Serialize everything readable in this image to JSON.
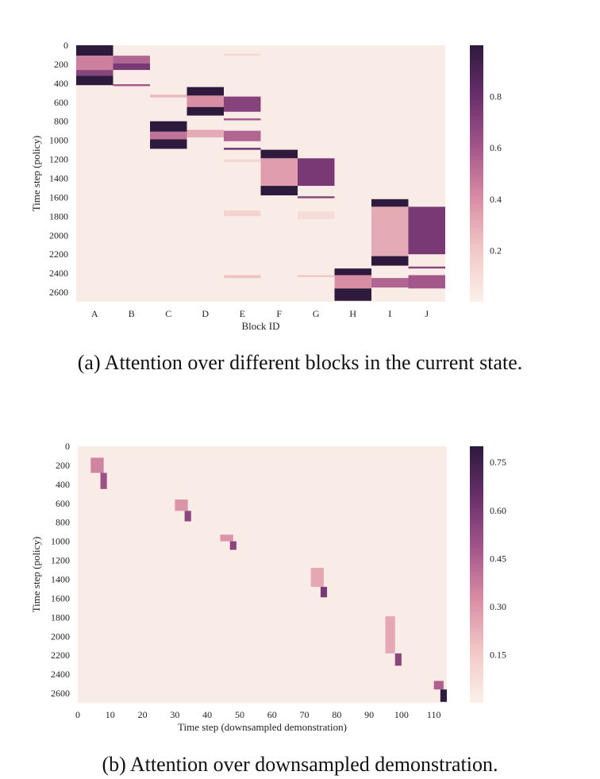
{
  "colors": {
    "low": "#fbf0ea",
    "low_mid": "#f1c8c6",
    "mid": "#d98ea4",
    "mid_high": "#a4578a",
    "high": "#6a2f6e",
    "max": "#2e1a3c",
    "background": "#f9ece7"
  },
  "chart_data": [
    {
      "type": "heatmap",
      "caption": "(a) Attention over different blocks in the current state.",
      "xlabel": "Block ID",
      "ylabel": "Time step (policy)",
      "categories": [
        "A",
        "B",
        "C",
        "D",
        "E",
        "F",
        "G",
        "H",
        "I",
        "J"
      ],
      "y_ticks": [
        0,
        200,
        400,
        600,
        800,
        1000,
        1200,
        1400,
        1600,
        1800,
        2000,
        2200,
        2400,
        2600
      ],
      "y_range": [
        0,
        2700
      ],
      "colorbar_ticks": [
        0.2,
        0.4,
        0.6,
        0.8
      ],
      "colorbar_range": [
        0.0,
        1.0
      ],
      "cells": [
        {
          "col": 0,
          "y0": 0,
          "y1": 110,
          "v": 1.0
        },
        {
          "col": 0,
          "y0": 110,
          "y1": 260,
          "v": 0.45
        },
        {
          "col": 0,
          "y0": 260,
          "y1": 320,
          "v": 0.7
        },
        {
          "col": 0,
          "y0": 320,
          "y1": 420,
          "v": 1.0
        },
        {
          "col": 1,
          "y0": 110,
          "y1": 190,
          "v": 0.55
        },
        {
          "col": 1,
          "y0": 190,
          "y1": 260,
          "v": 0.75
        },
        {
          "col": 1,
          "y0": 410,
          "y1": 430,
          "v": 0.6
        },
        {
          "col": 2,
          "y0": 520,
          "y1": 550,
          "v": 0.25
        },
        {
          "col": 2,
          "y0": 800,
          "y1": 910,
          "v": 1.0
        },
        {
          "col": 2,
          "y0": 910,
          "y1": 990,
          "v": 0.5
        },
        {
          "col": 2,
          "y0": 990,
          "y1": 1090,
          "v": 1.0
        },
        {
          "col": 3,
          "y0": 440,
          "y1": 530,
          "v": 1.0
        },
        {
          "col": 3,
          "y0": 530,
          "y1": 650,
          "v": 0.4
        },
        {
          "col": 3,
          "y0": 650,
          "y1": 740,
          "v": 1.0
        },
        {
          "col": 3,
          "y0": 890,
          "y1": 970,
          "v": 0.3
        },
        {
          "col": 4,
          "y0": 90,
          "y1": 110,
          "v": 0.12
        },
        {
          "col": 4,
          "y0": 540,
          "y1": 700,
          "v": 0.7
        },
        {
          "col": 4,
          "y0": 770,
          "y1": 790,
          "v": 0.6
        },
        {
          "col": 4,
          "y0": 900,
          "y1": 1010,
          "v": 0.55
        },
        {
          "col": 4,
          "y0": 1080,
          "y1": 1100,
          "v": 0.8
        },
        {
          "col": 4,
          "y0": 1200,
          "y1": 1230,
          "v": 0.12
        },
        {
          "col": 4,
          "y0": 1740,
          "y1": 1800,
          "v": 0.15
        },
        {
          "col": 4,
          "y0": 2420,
          "y1": 2450,
          "v": 0.22
        },
        {
          "col": 5,
          "y0": 1100,
          "y1": 1190,
          "v": 1.0
        },
        {
          "col": 5,
          "y0": 1190,
          "y1": 1480,
          "v": 0.35
        },
        {
          "col": 5,
          "y0": 1480,
          "y1": 1580,
          "v": 1.0
        },
        {
          "col": 6,
          "y0": 1190,
          "y1": 1480,
          "v": 0.75
        },
        {
          "col": 6,
          "y0": 1590,
          "y1": 1610,
          "v": 0.7
        },
        {
          "col": 6,
          "y0": 1750,
          "y1": 1830,
          "v": 0.1
        },
        {
          "col": 6,
          "y0": 2420,
          "y1": 2440,
          "v": 0.2
        },
        {
          "col": 7,
          "y0": 2350,
          "y1": 2420,
          "v": 1.0
        },
        {
          "col": 7,
          "y0": 2420,
          "y1": 2560,
          "v": 0.4
        },
        {
          "col": 7,
          "y0": 2560,
          "y1": 2690,
          "v": 1.0
        },
        {
          "col": 8,
          "y0": 1620,
          "y1": 1700,
          "v": 1.0
        },
        {
          "col": 8,
          "y0": 1700,
          "y1": 2220,
          "v": 0.3
        },
        {
          "col": 8,
          "y0": 2220,
          "y1": 2320,
          "v": 1.0
        },
        {
          "col": 8,
          "y0": 2450,
          "y1": 2550,
          "v": 0.55
        },
        {
          "col": 9,
          "y0": 1700,
          "y1": 2200,
          "v": 0.75
        },
        {
          "col": 9,
          "y0": 2330,
          "y1": 2350,
          "v": 0.7
        },
        {
          "col": 9,
          "y0": 2420,
          "y1": 2560,
          "v": 0.6
        }
      ]
    },
    {
      "type": "heatmap",
      "caption": "(b) Attention over downsampled demonstration.",
      "xlabel": "Time step (downsampled demonstration)",
      "ylabel": "Time step (policy)",
      "x_ticks": [
        0,
        10,
        20,
        30,
        40,
        50,
        60,
        70,
        80,
        90,
        100,
        110
      ],
      "x_range": [
        0,
        114
      ],
      "y_ticks": [
        0,
        200,
        400,
        600,
        800,
        1000,
        1200,
        1400,
        1600,
        1800,
        2000,
        2200,
        2400,
        2600
      ],
      "y_range": [
        0,
        2700
      ],
      "colorbar_ticks": [
        0.15,
        0.3,
        0.45,
        0.6,
        0.75
      ],
      "colorbar_range": [
        0.0,
        0.8
      ],
      "cells": [
        {
          "x0": 4,
          "x1": 8,
          "y0": 120,
          "y1": 280,
          "v": 0.35
        },
        {
          "x0": 7,
          "x1": 9,
          "y0": 280,
          "y1": 450,
          "v": 0.5
        },
        {
          "x0": 30,
          "x1": 34,
          "y0": 560,
          "y1": 680,
          "v": 0.3
        },
        {
          "x0": 33,
          "x1": 35,
          "y0": 680,
          "y1": 790,
          "v": 0.55
        },
        {
          "x0": 44,
          "x1": 48,
          "y0": 930,
          "y1": 1000,
          "v": 0.3
        },
        {
          "x0": 47,
          "x1": 49,
          "y0": 1000,
          "y1": 1090,
          "v": 0.55
        },
        {
          "x0": 72,
          "x1": 76,
          "y0": 1280,
          "y1": 1480,
          "v": 0.25
        },
        {
          "x0": 75,
          "x1": 77,
          "y0": 1480,
          "y1": 1590,
          "v": 0.6
        },
        {
          "x0": 95,
          "x1": 98,
          "y0": 1790,
          "y1": 2180,
          "v": 0.25
        },
        {
          "x0": 98,
          "x1": 100,
          "y0": 2180,
          "y1": 2310,
          "v": 0.55
        },
        {
          "x0": 110,
          "x1": 113,
          "y0": 2470,
          "y1": 2560,
          "v": 0.45
        },
        {
          "x0": 112,
          "x1": 114,
          "y0": 2560,
          "y1": 2690,
          "v": 0.8
        }
      ]
    }
  ]
}
